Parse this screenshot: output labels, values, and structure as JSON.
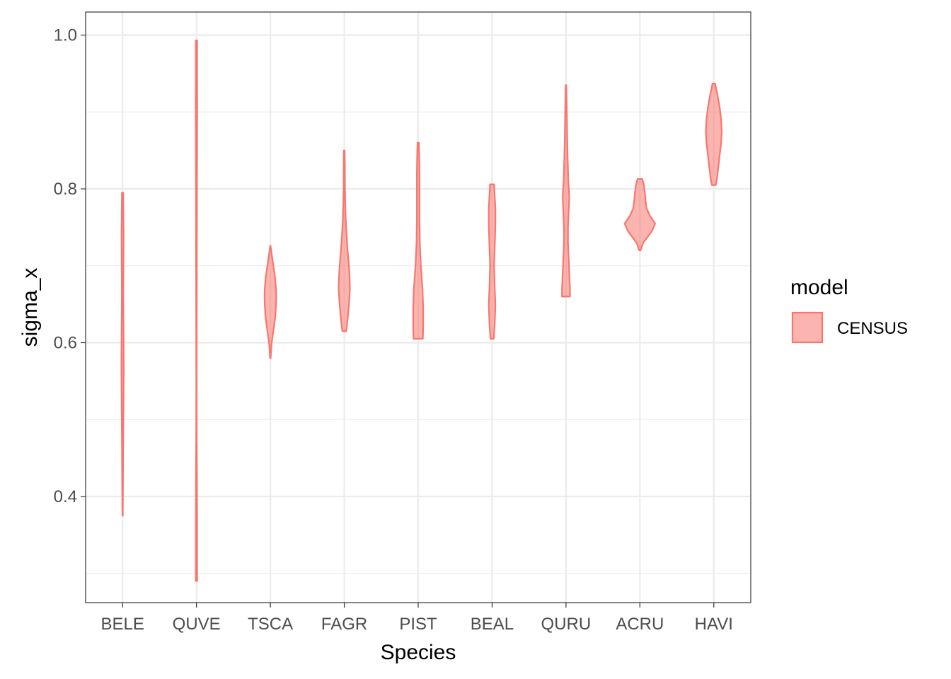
{
  "chart_data": {
    "type": "violin",
    "xlabel": "Species",
    "ylabel": "sigma_x",
    "ylim": [
      0.262,
      1.03
    ],
    "y_ticks": [
      0.4,
      0.6,
      0.8,
      1.0
    ],
    "y_tick_labels": [
      "0.4",
      "0.6",
      "0.8",
      "1.0"
    ],
    "y_minor_ticks": [
      0.3,
      0.5,
      0.7,
      0.9
    ],
    "grid": true,
    "categories": [
      "BELE",
      "QUVE",
      "TSCA",
      "FAGR",
      "PIST",
      "BEAL",
      "QURU",
      "ACRU",
      "HAVI"
    ],
    "legend": {
      "title": "model",
      "entries": [
        "CENSUS"
      ],
      "position": "right"
    },
    "colors": {
      "fill": "#F8766D",
      "fill_opacity": 0.55,
      "stroke": "#F8766D",
      "grid": "#ebebeb",
      "axis_text": "#4d4d4d"
    },
    "series": [
      {
        "name": "CENSUS",
        "violins": [
          {
            "category": "BELE",
            "min": 0.375,
            "max": 0.795,
            "profile": [
              [
                0.375,
                0.006
              ],
              [
                0.42,
                0.012
              ],
              [
                0.48,
                0.02
              ],
              [
                0.53,
                0.03
              ],
              [
                0.57,
                0.036
              ],
              [
                0.61,
                0.03
              ],
              [
                0.66,
                0.022
              ],
              [
                0.7,
                0.026
              ],
              [
                0.74,
                0.032
              ],
              [
                0.77,
                0.024
              ],
              [
                0.795,
                0.02
              ]
            ]
          },
          {
            "category": "QUVE",
            "min": 0.29,
            "max": 0.993,
            "profile": [
              [
                0.29,
                0.02
              ],
              [
                0.35,
                0.02
              ],
              [
                0.42,
                0.016
              ],
              [
                0.48,
                0.008
              ],
              [
                0.55,
                0.006
              ],
              [
                0.62,
                0.008
              ],
              [
                0.7,
                0.012
              ],
              [
                0.8,
                0.016
              ],
              [
                0.9,
                0.022
              ],
              [
                0.95,
                0.02
              ],
              [
                0.993,
                0.02
              ]
            ]
          },
          {
            "category": "TSCA",
            "min": 0.58,
            "max": 0.726,
            "profile": [
              [
                0.58,
                0.01
              ],
              [
                0.59,
                0.022
              ],
              [
                0.6,
                0.04
              ],
              [
                0.615,
                0.09
              ],
              [
                0.635,
                0.15
              ],
              [
                0.65,
                0.17
              ],
              [
                0.66,
                0.175
              ],
              [
                0.67,
                0.17
              ],
              [
                0.685,
                0.14
              ],
              [
                0.7,
                0.09
              ],
              [
                0.715,
                0.04
              ],
              [
                0.726,
                0.005
              ]
            ]
          },
          {
            "category": "FAGR",
            "min": 0.615,
            "max": 0.85,
            "profile": [
              [
                0.615,
                0.06
              ],
              [
                0.63,
                0.1
              ],
              [
                0.65,
                0.14
              ],
              [
                0.67,
                0.17
              ],
              [
                0.685,
                0.16
              ],
              [
                0.7,
                0.14
              ],
              [
                0.72,
                0.1
              ],
              [
                0.74,
                0.07
              ],
              [
                0.76,
                0.045
              ],
              [
                0.78,
                0.03
              ],
              [
                0.8,
                0.02
              ],
              [
                0.83,
                0.018
              ],
              [
                0.85,
                0.012
              ]
            ]
          },
          {
            "category": "PIST",
            "min": 0.605,
            "max": 0.86,
            "profile": [
              [
                0.605,
                0.14
              ],
              [
                0.62,
                0.15
              ],
              [
                0.645,
                0.15
              ],
              [
                0.67,
                0.13
              ],
              [
                0.7,
                0.08
              ],
              [
                0.73,
                0.05
              ],
              [
                0.76,
                0.04
              ],
              [
                0.79,
                0.04
              ],
              [
                0.82,
                0.04
              ],
              [
                0.845,
                0.03
              ],
              [
                0.86,
                0.02
              ]
            ]
          },
          {
            "category": "BEAL",
            "min": 0.605,
            "max": 0.806,
            "profile": [
              [
                0.605,
                0.05
              ],
              [
                0.625,
                0.08
              ],
              [
                0.65,
                0.1
              ],
              [
                0.67,
                0.08
              ],
              [
                0.7,
                0.06
              ],
              [
                0.725,
                0.08
              ],
              [
                0.755,
                0.1
              ],
              [
                0.775,
                0.1
              ],
              [
                0.79,
                0.08
              ],
              [
                0.806,
                0.06
              ]
            ]
          },
          {
            "category": "QURU",
            "min": 0.66,
            "max": 0.935,
            "profile": [
              [
                0.66,
                0.12
              ],
              [
                0.67,
                0.12
              ],
              [
                0.69,
                0.1
              ],
              [
                0.71,
                0.08
              ],
              [
                0.73,
                0.06
              ],
              [
                0.75,
                0.06
              ],
              [
                0.77,
                0.08
              ],
              [
                0.79,
                0.1
              ],
              [
                0.81,
                0.07
              ],
              [
                0.84,
                0.05
              ],
              [
                0.87,
                0.035
              ],
              [
                0.9,
                0.025
              ],
              [
                0.935,
                0.01
              ]
            ]
          },
          {
            "category": "ACRU",
            "min": 0.72,
            "max": 0.813,
            "profile": [
              [
                0.72,
                0.02
              ],
              [
                0.73,
                0.1
              ],
              [
                0.745,
                0.36
              ],
              [
                0.755,
                0.46
              ],
              [
                0.765,
                0.3
              ],
              [
                0.775,
                0.2
              ],
              [
                0.785,
                0.17
              ],
              [
                0.795,
                0.15
              ],
              [
                0.805,
                0.12
              ],
              [
                0.813,
                0.07
              ]
            ]
          },
          {
            "category": "HAVI",
            "min": 0.805,
            "max": 0.937,
            "profile": [
              [
                0.805,
                0.06
              ],
              [
                0.815,
                0.1
              ],
              [
                0.83,
                0.14
              ],
              [
                0.845,
                0.18
              ],
              [
                0.86,
                0.22
              ],
              [
                0.875,
                0.24
              ],
              [
                0.89,
                0.22
              ],
              [
                0.905,
                0.18
              ],
              [
                0.92,
                0.12
              ],
              [
                0.93,
                0.07
              ],
              [
                0.937,
                0.04
              ]
            ]
          }
        ]
      }
    ]
  }
}
